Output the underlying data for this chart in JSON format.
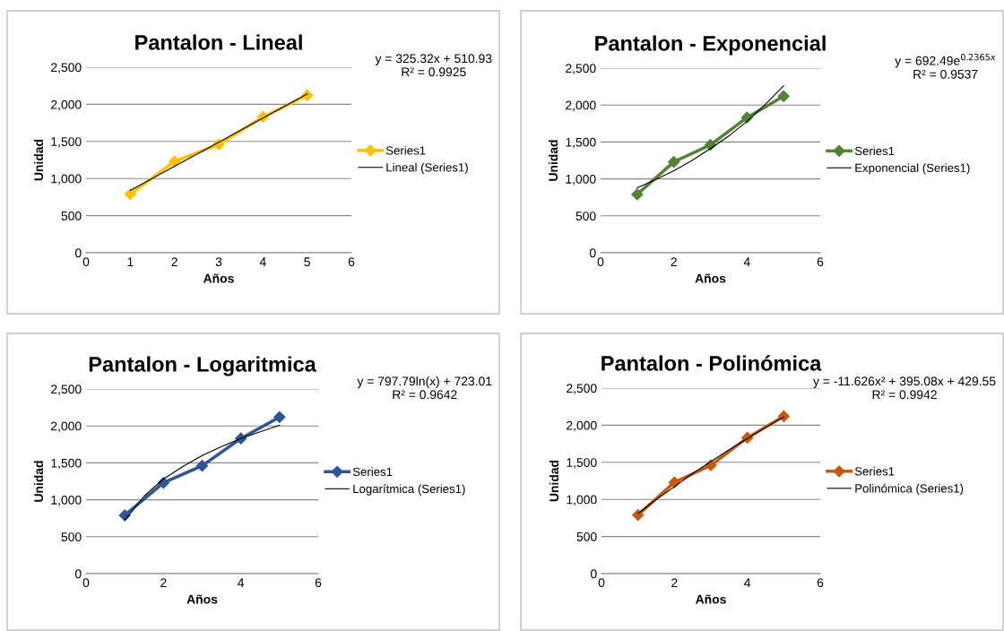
{
  "chart_data": [
    {
      "type": "line",
      "title": "Pantalon - Lineal",
      "xlabel": "Años",
      "ylabel": "Unidad",
      "annotations": [
        "y = 325.32x + 510.93\nR² = 0.9925"
      ],
      "series": [
        {
          "name": "Series1",
          "color": "#ffc000",
          "marker": "diamond",
          "x": [
            1,
            2,
            3,
            4,
            5
          ],
          "values": [
            790,
            1230,
            1460,
            1830,
            2120
          ]
        },
        {
          "name": "Lineal (Series1)",
          "color": "#000000",
          "marker": "none",
          "x": [
            1,
            5
          ],
          "values": [
            840,
            2140
          ]
        }
      ],
      "xlim": [
        0,
        6
      ],
      "xticks": [
        0,
        1,
        2,
        3,
        4,
        5,
        6
      ],
      "ylim": [
        0,
        2500
      ],
      "yticks": [
        0,
        500,
        {
          "value": 1000,
          "label": "1,000"
        },
        {
          "value": 1500,
          "label": "1,500"
        },
        {
          "value": 2000,
          "label": "2,000"
        },
        {
          "value": 2500,
          "label": "2,500"
        }
      ],
      "grid": "y",
      "legend": "right"
    },
    {
      "type": "line",
      "title": "Pantalon - Exponencial",
      "xlabel": "Años",
      "ylabel": "Unidad",
      "annotations": [
        "y = 692.49e$^{0.2365x}$\nR² = 0.9537"
      ],
      "series": [
        {
          "name": "Series1",
          "color": "#538135",
          "marker": "diamond",
          "x": [
            1,
            2,
            3,
            4,
            5
          ],
          "values": [
            790,
            1230,
            1460,
            1830,
            2120
          ]
        },
        {
          "name": "Exponencial (Series1)",
          "color": "#000000",
          "marker": "none",
          "x": [
            1,
            1.5,
            2,
            2.5,
            3,
            3.5,
            4,
            4.5,
            5
          ],
          "values": [
            880,
            990,
            1110,
            1250,
            1410,
            1580,
            1780,
            2010,
            2260
          ]
        }
      ],
      "xlim": [
        0,
        6
      ],
      "xticks": [
        0,
        2,
        4,
        6
      ],
      "ylim": [
        0,
        2500
      ],
      "yticks": [
        0,
        500,
        {
          "value": 1000,
          "label": "1,000"
        },
        {
          "value": 1500,
          "label": "1,500"
        },
        {
          "value": 2000,
          "label": "2,000"
        },
        {
          "value": 2500,
          "label": "2,500"
        }
      ],
      "grid": "y",
      "legend": "right"
    },
    {
      "type": "line",
      "title": "Pantalon - Logaritmica",
      "xlabel": "Años",
      "ylabel": "Unidad",
      "annotations": [
        "y = 797.79ln(x) + 723.01\nR² = 0.9642"
      ],
      "series": [
        {
          "name": "Series1",
          "color": "#2f5597",
          "marker": "diamond",
          "x": [
            1,
            2,
            3,
            4,
            5
          ],
          "values": [
            790,
            1230,
            1460,
            1830,
            2120
          ]
        },
        {
          "name": "Logarítmica (Series1)",
          "color": "#000000",
          "marker": "none",
          "x": [
            1,
            1.5,
            2,
            2.5,
            3,
            3.5,
            4,
            4.5,
            5
          ],
          "values": [
            720,
            1050,
            1280,
            1450,
            1600,
            1720,
            1830,
            1920,
            2010
          ]
        }
      ],
      "xlim": [
        0,
        6
      ],
      "xticks": [
        0,
        2,
        4,
        6
      ],
      "ylim": [
        0,
        2500
      ],
      "yticks": [
        0,
        500,
        {
          "value": 1000,
          "label": "1,000"
        },
        {
          "value": 1500,
          "label": "1,500"
        },
        {
          "value": 2000,
          "label": "2,000"
        },
        {
          "value": 2500,
          "label": "2,500"
        }
      ],
      "grid": "y",
      "legend": "right"
    },
    {
      "type": "line",
      "title": "Pantalon - Polinómica",
      "xlabel": "Años",
      "ylabel": "Unidad",
      "annotations": [
        "y = -11.626x² + 395.08x + 429.55\nR² = 0.9942"
      ],
      "series": [
        {
          "name": "Series1",
          "color": "#c55a11",
          "marker": "diamond",
          "x": [
            1,
            2,
            3,
            4,
            5
          ],
          "values": [
            790,
            1230,
            1460,
            1830,
            2120
          ]
        },
        {
          "name": "Polinómica (Series1)",
          "color": "#000000",
          "marker": "none",
          "x": [
            1,
            1.5,
            2,
            2.5,
            3,
            3.5,
            4,
            4.5,
            5
          ],
          "values": [
            810,
            1000,
            1170,
            1350,
            1510,
            1670,
            1820,
            1970,
            2110
          ]
        }
      ],
      "xlim": [
        0,
        6
      ],
      "xticks": [
        0,
        2,
        4,
        6
      ],
      "ylim": [
        0,
        2500
      ],
      "yticks": [
        0,
        500,
        {
          "value": 1000,
          "label": "1,000"
        },
        {
          "value": 1500,
          "label": "1,500"
        },
        {
          "value": 2000,
          "label": "2,000"
        },
        {
          "value": 2500,
          "label": "2,500"
        }
      ],
      "grid": "y",
      "legend": "right"
    }
  ]
}
